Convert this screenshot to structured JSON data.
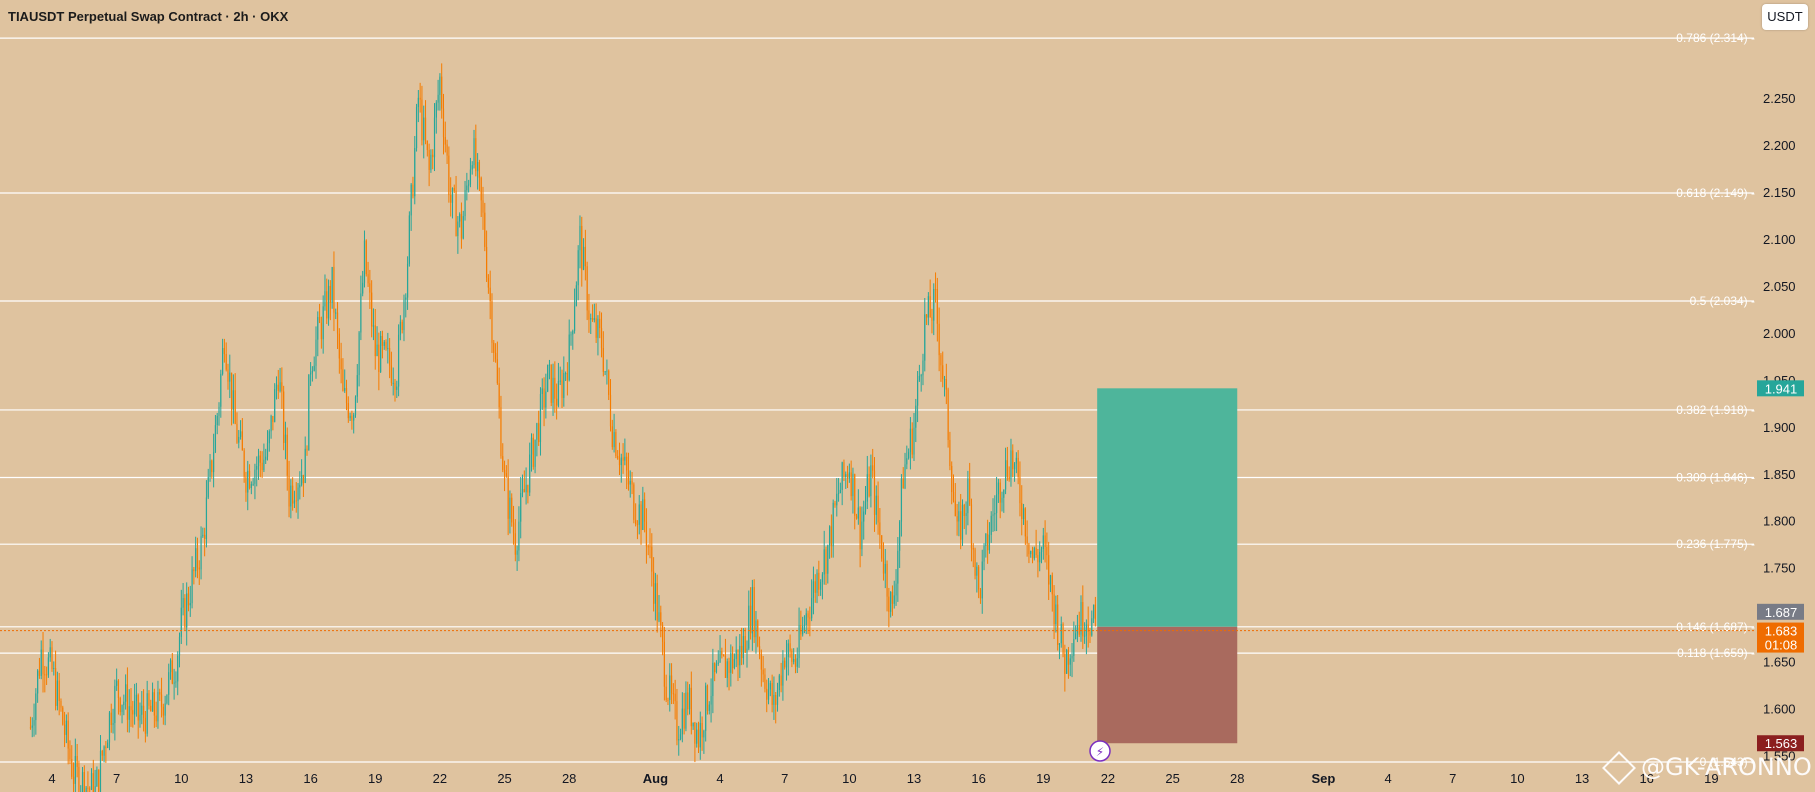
{
  "chart_title": "TIAUSDT Perpetual Swap Contract · 2h · OKX",
  "currency_button": "USDT",
  "watermark": "@GK-ARONNO",
  "colors": {
    "background": "#dfc39f",
    "up": "#26a69a",
    "down": "#f57c00",
    "target_zone": "#4eb59b",
    "stop_zone": "#a96a5e",
    "fib_line": "#ffffff",
    "current_price": "#ef6c00"
  },
  "chart_data": {
    "type": "candlestick",
    "symbol": "TIAUSDT",
    "timeframe": "2h",
    "exchange": "OKX",
    "y_range": [
      1.51,
      2.345
    ],
    "y_ticks": [
      "2.250",
      "2.200",
      "2.150",
      "2.100",
      "2.050",
      "2.000",
      "1.950",
      "1.900",
      "1.850",
      "1.800",
      "1.750",
      "1.650",
      "1.600",
      "1.550"
    ],
    "x_ticks": [
      {
        "label": "4",
        "date": "2025-07-04"
      },
      {
        "label": "7",
        "date": "2025-07-07"
      },
      {
        "label": "10",
        "date": "2025-07-10"
      },
      {
        "label": "13",
        "date": "2025-07-13"
      },
      {
        "label": "16",
        "date": "2025-07-16"
      },
      {
        "label": "19",
        "date": "2025-07-19"
      },
      {
        "label": "22",
        "date": "2025-07-22"
      },
      {
        "label": "25",
        "date": "2025-07-25"
      },
      {
        "label": "28",
        "date": "2025-07-28"
      },
      {
        "label": "Aug",
        "date": "2025-08-01"
      },
      {
        "label": "4",
        "date": "2025-08-04"
      },
      {
        "label": "7",
        "date": "2025-08-07"
      },
      {
        "label": "10",
        "date": "2025-08-10"
      },
      {
        "label": "13",
        "date": "2025-08-13"
      },
      {
        "label": "16",
        "date": "2025-08-16"
      },
      {
        "label": "19",
        "date": "2025-08-19"
      },
      {
        "label": "22",
        "date": "2025-08-22"
      },
      {
        "label": "25",
        "date": "2025-08-25"
      },
      {
        "label": "28",
        "date": "2025-08-28"
      },
      {
        "label": "Sep",
        "date": "2025-09-01"
      },
      {
        "label": "4",
        "date": "2025-09-04"
      },
      {
        "label": "7",
        "date": "2025-09-07"
      },
      {
        "label": "10",
        "date": "2025-09-10"
      },
      {
        "label": "13",
        "date": "2025-09-13"
      },
      {
        "label": "16",
        "date": "2025-09-16"
      },
      {
        "label": "19",
        "date": "2025-09-19"
      }
    ],
    "price_path": [
      {
        "date": "2025-07-03",
        "price": 1.58
      },
      {
        "date": "2025-07-03T12",
        "price": 1.66
      },
      {
        "date": "2025-07-04",
        "price": 1.64
      },
      {
        "date": "2025-07-05",
        "price": 1.53
      },
      {
        "date": "2025-07-06",
        "price": 1.51
      },
      {
        "date": "2025-07-06T18",
        "price": 1.6
      },
      {
        "date": "2025-07-07",
        "price": 1.62
      },
      {
        "date": "2025-07-08",
        "price": 1.59
      },
      {
        "date": "2025-07-09",
        "price": 1.6
      },
      {
        "date": "2025-07-09T18",
        "price": 1.65
      },
      {
        "date": "2025-07-10",
        "price": 1.69
      },
      {
        "date": "2025-07-11",
        "price": 1.78
      },
      {
        "date": "2025-07-11T18",
        "price": 1.93
      },
      {
        "date": "2025-07-12",
        "price": 2.0
      },
      {
        "date": "2025-07-12T12",
        "price": 1.9
      },
      {
        "date": "2025-07-13",
        "price": 1.85
      },
      {
        "date": "2025-07-14",
        "price": 1.87
      },
      {
        "date": "2025-07-14T12",
        "price": 1.96
      },
      {
        "date": "2025-07-15",
        "price": 1.83
      },
      {
        "date": "2025-07-15T18",
        "price": 1.86
      },
      {
        "date": "2025-07-16",
        "price": 1.97
      },
      {
        "date": "2025-07-17",
        "price": 2.05
      },
      {
        "date": "2025-07-17T12",
        "price": 1.93
      },
      {
        "date": "2025-07-18",
        "price": 1.92
      },
      {
        "date": "2025-07-18T12",
        "price": 2.08
      },
      {
        "date": "2025-07-19",
        "price": 1.98
      },
      {
        "date": "2025-07-20",
        "price": 1.96
      },
      {
        "date": "2025-07-20T12",
        "price": 2.08
      },
      {
        "date": "2025-07-21",
        "price": 2.25
      },
      {
        "date": "2025-07-21T12",
        "price": 2.17
      },
      {
        "date": "2025-07-22",
        "price": 2.27
      },
      {
        "date": "2025-07-22T12",
        "price": 2.14
      },
      {
        "date": "2025-07-23",
        "price": 2.11
      },
      {
        "date": "2025-07-23T12",
        "price": 2.2
      },
      {
        "date": "2025-07-24",
        "price": 2.12
      },
      {
        "date": "2025-07-24T12",
        "price": 1.99
      },
      {
        "date": "2025-07-25",
        "price": 1.84
      },
      {
        "date": "2025-07-25T12",
        "price": 1.78
      },
      {
        "date": "2025-07-26",
        "price": 1.84
      },
      {
        "date": "2025-07-27",
        "price": 1.95
      },
      {
        "date": "2025-07-27T12",
        "price": 1.93
      },
      {
        "date": "2025-07-28",
        "price": 1.98
      },
      {
        "date": "2025-07-28T12",
        "price": 2.1
      },
      {
        "date": "2025-07-29",
        "price": 2.01
      },
      {
        "date": "2025-07-29T12",
        "price": 1.99
      },
      {
        "date": "2025-07-30",
        "price": 1.9
      },
      {
        "date": "2025-07-31",
        "price": 1.82
      },
      {
        "date": "2025-07-31T12",
        "price": 1.8
      },
      {
        "date": "2025-08-01",
        "price": 1.72
      },
      {
        "date": "2025-08-01T12",
        "price": 1.63
      },
      {
        "date": "2025-08-02",
        "price": 1.58
      },
      {
        "date": "2025-08-02T12",
        "price": 1.61
      },
      {
        "date": "2025-08-03",
        "price": 1.57
      },
      {
        "date": "2025-08-03T12",
        "price": 1.62
      },
      {
        "date": "2025-08-04",
        "price": 1.64
      },
      {
        "date": "2025-08-05",
        "price": 1.66
      },
      {
        "date": "2025-08-05T12",
        "price": 1.71
      },
      {
        "date": "2025-08-06",
        "price": 1.64
      },
      {
        "date": "2025-08-06T12",
        "price": 1.6
      },
      {
        "date": "2025-08-07",
        "price": 1.66
      },
      {
        "date": "2025-08-07T12",
        "price": 1.65
      },
      {
        "date": "2025-08-08",
        "price": 1.7
      },
      {
        "date": "2025-08-08T12",
        "price": 1.74
      },
      {
        "date": "2025-08-09",
        "price": 1.77
      },
      {
        "date": "2025-08-09T12",
        "price": 1.83
      },
      {
        "date": "2025-08-10",
        "price": 1.86
      },
      {
        "date": "2025-08-10T12",
        "price": 1.79
      },
      {
        "date": "2025-08-11",
        "price": 1.85
      },
      {
        "date": "2025-08-11T12",
        "price": 1.77
      },
      {
        "date": "2025-08-12",
        "price": 1.7
      },
      {
        "date": "2025-08-12T12",
        "price": 1.85
      },
      {
        "date": "2025-08-13",
        "price": 1.9
      },
      {
        "date": "2025-08-13T12",
        "price": 2.01
      },
      {
        "date": "2025-08-14",
        "price": 2.03
      },
      {
        "date": "2025-08-14T12",
        "price": 1.92
      },
      {
        "date": "2025-08-15",
        "price": 1.78
      },
      {
        "date": "2025-08-15T12",
        "price": 1.83
      },
      {
        "date": "2025-08-16",
        "price": 1.72
      },
      {
        "date": "2025-08-16T12",
        "price": 1.79
      },
      {
        "date": "2025-08-17",
        "price": 1.84
      },
      {
        "date": "2025-08-17T12",
        "price": 1.87
      },
      {
        "date": "2025-08-18",
        "price": 1.82
      },
      {
        "date": "2025-08-18T12",
        "price": 1.76
      },
      {
        "date": "2025-08-19",
        "price": 1.77
      },
      {
        "date": "2025-08-19T12",
        "price": 1.71
      },
      {
        "date": "2025-08-20",
        "price": 1.65
      },
      {
        "date": "2025-08-20T12",
        "price": 1.69
      },
      {
        "date": "2025-08-21",
        "price": 1.7
      },
      {
        "date": "2025-08-21T12",
        "price": 1.683
      }
    ],
    "fibonacci_levels": [
      {
        "label": "0.786 (2.314)",
        "value": 2.314
      },
      {
        "label": "0.618 (2.149)",
        "value": 2.149
      },
      {
        "label": "0.5 (2.034)",
        "value": 2.034
      },
      {
        "label": "0.382 (1.918)",
        "value": 1.918
      },
      {
        "label": "0.309 (1.846)",
        "value": 1.846
      },
      {
        "label": "0.236 (1.775)",
        "value": 1.775
      },
      {
        "label": "0.146 (1.687)",
        "value": 1.687
      },
      {
        "label": "0.118 (1.659)",
        "value": 1.659
      },
      {
        "label": "0 (1.543)",
        "value": 1.543
      }
    ],
    "position": {
      "type": "long",
      "start": "2025-08-21T12",
      "end": "2025-08-28",
      "entry": 1.687,
      "target": 1.941,
      "stop": 1.563
    },
    "price_labels": [
      {
        "text": "1.941",
        "value": 1.941,
        "color": "#26a69a"
      },
      {
        "text": "1.687",
        "value": 1.687,
        "color": "#787b86"
      },
      {
        "text": "1.683",
        "value": 1.683,
        "color": "#ef6c00"
      },
      {
        "text": "01:08",
        "value": 1.683,
        "color": "#ef6c00",
        "sub": true
      },
      {
        "text": "1.563",
        "value": 1.563,
        "color": "#8b1f1f"
      }
    ],
    "current_price": 1.683,
    "countdown": "01:08"
  }
}
